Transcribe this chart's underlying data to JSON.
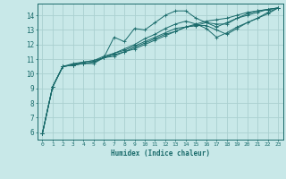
{
  "bg_color": "#c8e8e8",
  "grid_color": "#aad0d0",
  "line_color": "#1a6b6b",
  "xlabel": "Humidex (Indice chaleur)",
  "xlim": [
    -0.5,
    23.5
  ],
  "ylim": [
    5.5,
    14.8
  ],
  "yticks": [
    6,
    7,
    8,
    9,
    10,
    11,
    12,
    13,
    14
  ],
  "xticks": [
    0,
    1,
    2,
    3,
    4,
    5,
    6,
    7,
    8,
    9,
    10,
    11,
    12,
    13,
    14,
    15,
    16,
    17,
    18,
    19,
    20,
    21,
    22,
    23
  ],
  "lines": [
    {
      "x": [
        0,
        1,
        2,
        3,
        4,
        5,
        6,
        7,
        8,
        9,
        10,
        11,
        12,
        13,
        14,
        15,
        16,
        17,
        18,
        19,
        20,
        21,
        22,
        23
      ],
      "y": [
        5.9,
        9.1,
        10.5,
        10.6,
        10.7,
        10.8,
        11.1,
        12.5,
        12.2,
        13.1,
        13.0,
        13.5,
        14.0,
        14.3,
        14.3,
        13.8,
        13.5,
        13.2,
        13.5,
        13.8,
        14.1,
        14.3,
        14.4,
        14.5
      ]
    },
    {
      "x": [
        0,
        1,
        2,
        3,
        4,
        5,
        6,
        7,
        8,
        9,
        10,
        11,
        12,
        13,
        14,
        15,
        16,
        17,
        18,
        19,
        20,
        21,
        22,
        23
      ],
      "y": [
        5.9,
        9.1,
        10.5,
        10.6,
        10.7,
        10.7,
        11.1,
        11.2,
        11.5,
        11.7,
        12.0,
        12.3,
        12.6,
        12.9,
        13.2,
        13.4,
        13.6,
        13.7,
        13.8,
        14.0,
        14.2,
        14.3,
        14.4,
        14.5
      ]
    },
    {
      "x": [
        0,
        1,
        2,
        3,
        4,
        5,
        6,
        7,
        8,
        9,
        10,
        11,
        12,
        13,
        14,
        15,
        16,
        17,
        18,
        19,
        20,
        21,
        22,
        23
      ],
      "y": [
        5.9,
        9.1,
        10.5,
        10.6,
        10.7,
        10.8,
        11.1,
        11.3,
        11.5,
        11.8,
        12.1,
        12.4,
        12.7,
        12.9,
        13.2,
        13.3,
        13.5,
        13.4,
        13.4,
        13.8,
        14.0,
        14.2,
        14.4,
        14.5
      ]
    },
    {
      "x": [
        0,
        1,
        2,
        3,
        4,
        5,
        6,
        7,
        8,
        9,
        10,
        11,
        12,
        13,
        14,
        15,
        16,
        17,
        18,
        19,
        20,
        21,
        22,
        23
      ],
      "y": [
        5.9,
        9.1,
        10.5,
        10.6,
        10.8,
        10.9,
        11.2,
        11.4,
        11.6,
        11.9,
        12.2,
        12.5,
        12.8,
        13.1,
        13.2,
        13.3,
        13.3,
        13.0,
        12.7,
        13.1,
        13.5,
        13.8,
        14.1,
        14.5
      ]
    },
    {
      "x": [
        0,
        1,
        2,
        3,
        4,
        5,
        6,
        7,
        8,
        9,
        10,
        11,
        12,
        13,
        14,
        15,
        16,
        17,
        18,
        19,
        20,
        21,
        22,
        23
      ],
      "y": [
        5.9,
        9.1,
        10.5,
        10.7,
        10.8,
        10.9,
        11.1,
        11.4,
        11.7,
        12.0,
        12.4,
        12.7,
        13.1,
        13.4,
        13.6,
        13.4,
        13.1,
        12.5,
        12.8,
        13.2,
        13.5,
        13.8,
        14.2,
        14.5
      ]
    }
  ]
}
